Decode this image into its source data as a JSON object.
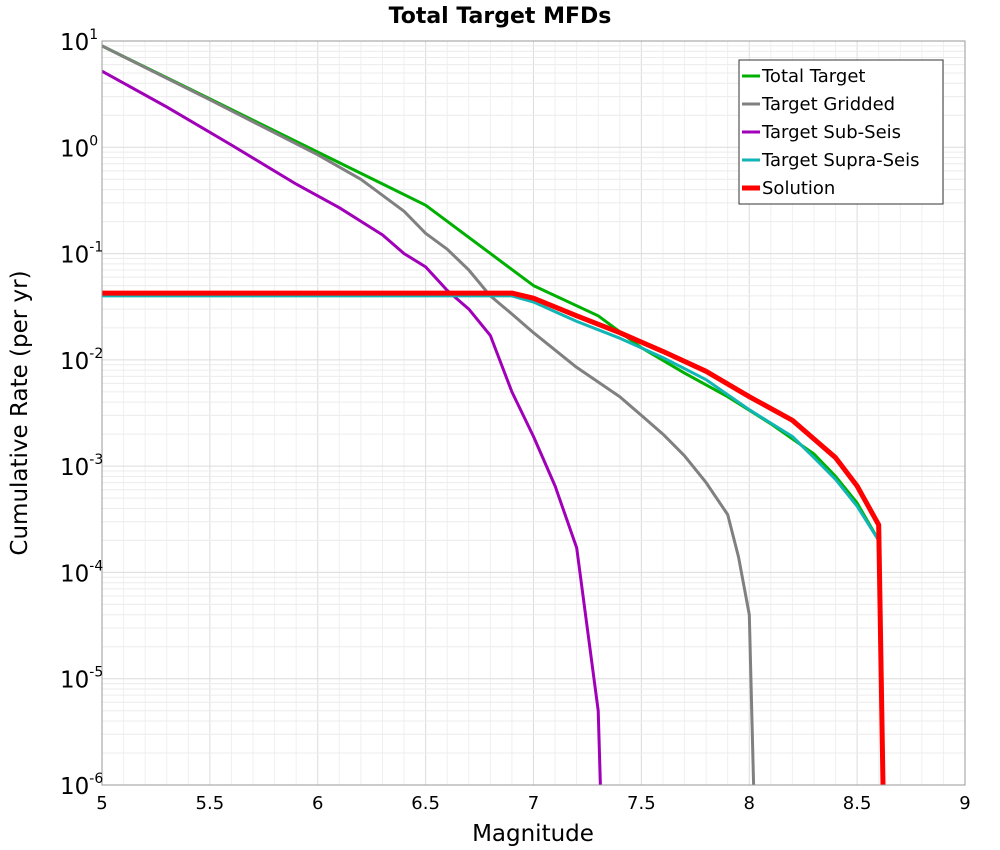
{
  "chart_data": {
    "type": "line",
    "title": "Total Target MFDs",
    "xlabel": "Magnitude",
    "ylabel": "Cumulative Rate (per yr)",
    "xlim": [
      5,
      9
    ],
    "ylim": [
      1e-06,
      10
    ],
    "yscale": "log",
    "grid": true,
    "legend_position": "top-right",
    "x_ticks": [
      "5",
      "5.5",
      "6",
      "6.5",
      "7",
      "7.5",
      "8",
      "8.5",
      "9"
    ],
    "y_ticks": [
      {
        "base": "10",
        "exp": "1"
      },
      {
        "base": "10",
        "exp": "0"
      },
      {
        "base": "10",
        "exp": "-1"
      },
      {
        "base": "10",
        "exp": "-2"
      },
      {
        "base": "10",
        "exp": "-3"
      },
      {
        "base": "10",
        "exp": "-4"
      },
      {
        "base": "10",
        "exp": "-5"
      },
      {
        "base": "10",
        "exp": "-6"
      }
    ],
    "series": [
      {
        "name": "Total Target",
        "color": "#00b000",
        "width": 3,
        "points": [
          [
            5.0,
            9.0
          ],
          [
            5.5,
            2.85
          ],
          [
            6.0,
            0.9
          ],
          [
            6.5,
            0.285
          ],
          [
            7.0,
            0.05
          ],
          [
            7.3,
            0.026
          ],
          [
            7.5,
            0.013
          ],
          [
            7.7,
            0.0075
          ],
          [
            7.9,
            0.0045
          ],
          [
            8.1,
            0.0025
          ],
          [
            8.3,
            0.0013
          ],
          [
            8.4,
            0.0008
          ],
          [
            8.5,
            0.00045
          ],
          [
            8.6,
            0.0002
          ]
        ]
      },
      {
        "name": "Target Gridded",
        "color": "#808080",
        "width": 3,
        "points": [
          [
            5.0,
            9.0
          ],
          [
            5.5,
            2.8
          ],
          [
            6.0,
            0.85
          ],
          [
            6.2,
            0.5
          ],
          [
            6.4,
            0.25
          ],
          [
            6.5,
            0.155
          ],
          [
            6.6,
            0.11
          ],
          [
            6.7,
            0.07
          ],
          [
            6.8,
            0.04
          ],
          [
            6.9,
            0.027
          ],
          [
            7.0,
            0.018
          ],
          [
            7.2,
            0.0085
          ],
          [
            7.4,
            0.0045
          ],
          [
            7.5,
            0.003
          ],
          [
            7.6,
            0.002
          ],
          [
            7.7,
            0.00125
          ],
          [
            7.8,
            0.0007
          ],
          [
            7.9,
            0.00035
          ],
          [
            7.95,
            0.00014
          ],
          [
            8.0,
            4e-05
          ],
          [
            8.02,
            1e-06
          ]
        ]
      },
      {
        "name": "Target Sub-Seis",
        "color": "#a000b8",
        "width": 3,
        "points": [
          [
            5.0,
            5.2
          ],
          [
            5.3,
            2.4
          ],
          [
            5.6,
            1.05
          ],
          [
            5.9,
            0.45
          ],
          [
            6.1,
            0.27
          ],
          [
            6.3,
            0.15
          ],
          [
            6.4,
            0.1
          ],
          [
            6.5,
            0.075
          ],
          [
            6.6,
            0.045
          ],
          [
            6.7,
            0.03
          ],
          [
            6.8,
            0.017
          ],
          [
            6.9,
            0.005
          ],
          [
            7.0,
            0.0019
          ],
          [
            7.1,
            0.00065
          ],
          [
            7.2,
            0.00017
          ],
          [
            7.3,
            5e-06
          ],
          [
            7.31,
            1e-06
          ]
        ]
      },
      {
        "name": "Target Supra-Seis",
        "color": "#12b5b5",
        "width": 3,
        "points": [
          [
            5.0,
            0.04
          ],
          [
            5.5,
            0.04
          ],
          [
            6.0,
            0.04
          ],
          [
            6.5,
            0.04
          ],
          [
            6.9,
            0.04
          ],
          [
            7.0,
            0.035
          ],
          [
            7.2,
            0.023
          ],
          [
            7.4,
            0.016
          ],
          [
            7.6,
            0.0105
          ],
          [
            7.8,
            0.0065
          ],
          [
            8.0,
            0.0034
          ],
          [
            8.2,
            0.0019
          ],
          [
            8.3,
            0.0012
          ],
          [
            8.4,
            0.00075
          ],
          [
            8.5,
            0.00042
          ],
          [
            8.6,
            0.0002
          ]
        ]
      },
      {
        "name": "Solution",
        "color": "#ff0000",
        "width": 5,
        "points": [
          [
            5.0,
            0.0425
          ],
          [
            5.5,
            0.0425
          ],
          [
            6.0,
            0.0425
          ],
          [
            6.5,
            0.0425
          ],
          [
            6.9,
            0.0425
          ],
          [
            7.0,
            0.038
          ],
          [
            7.2,
            0.026
          ],
          [
            7.4,
            0.018
          ],
          [
            7.6,
            0.012
          ],
          [
            7.8,
            0.0078
          ],
          [
            8.0,
            0.0045
          ],
          [
            8.2,
            0.0027
          ],
          [
            8.3,
            0.0018
          ],
          [
            8.4,
            0.0012
          ],
          [
            8.5,
            0.00065
          ],
          [
            8.6,
            0.00028
          ],
          [
            8.62,
            1e-06
          ]
        ]
      }
    ]
  }
}
